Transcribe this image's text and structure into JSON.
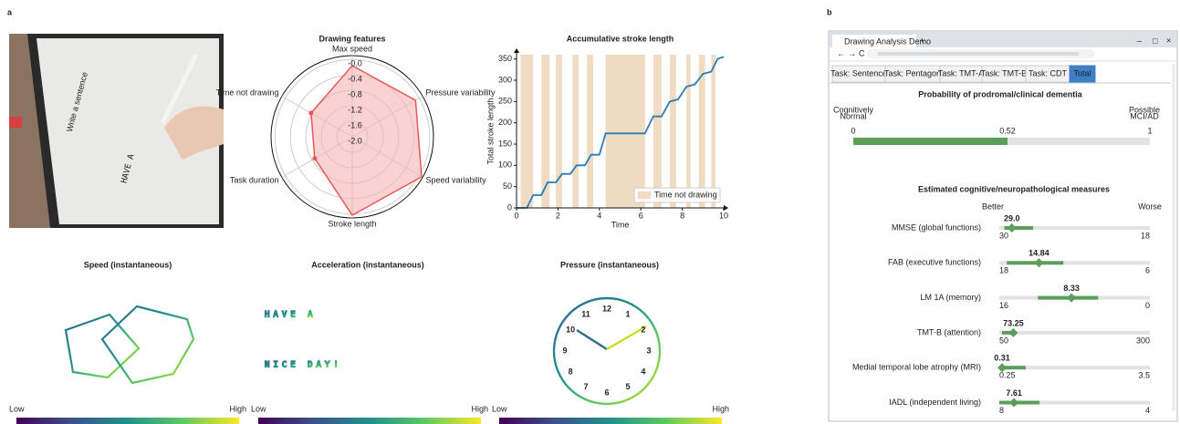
{
  "panel_a": {
    "label": "a",
    "photo": {
      "screen_text": "Write a sentence",
      "handwriting": "HAVE A"
    },
    "drawings": [
      {
        "title": "Speed (instantaneous)",
        "low": "Low",
        "high": "High"
      },
      {
        "title": "Acceleration (instantaneous)",
        "text_lines": [
          "HAVE A",
          "NICE DAY!"
        ],
        "low": "Low",
        "high": "High"
      },
      {
        "title": "Pressure (instantaneous)",
        "clock_numbers": [
          "12",
          "1",
          "2",
          "3",
          "4",
          "5",
          "6",
          "7",
          "8",
          "9",
          "10",
          "11"
        ],
        "low": "Low",
        "high": "High"
      }
    ]
  },
  "chart_data": [
    {
      "type": "radar",
      "title": "Drawing features",
      "categories": [
        "Max speed",
        "Pressure variability",
        "Speed variability",
        "Stroke length",
        "Task duration",
        "Time not drawing"
      ],
      "values": [
        -0.16,
        -0.11,
        0.07,
        0.03,
        -0.88,
        -0.77
      ],
      "color": "#e8585a",
      "fill": "#f6b4b2",
      "rlim": [
        -2.0,
        0.1
      ],
      "rticks": [
        {
          "value": 0,
          "label": "-0.0"
        },
        -0.4,
        -0.8,
        -1.2,
        -1.6,
        {
          "value": -2,
          "label": "-2.0"
        }
      ],
      "grid": true
    },
    {
      "type": "line",
      "title": "Accumulative stroke length",
      "xlabel": "Time",
      "ylabel": "Total stroke length",
      "x": [
        0,
        0.5,
        0.8,
        1.2,
        1.5,
        1.9,
        2.2,
        2.6,
        2.9,
        3.3,
        3.6,
        4.0,
        4.3,
        6.2,
        6.6,
        7.0,
        7.4,
        7.8,
        8.2,
        8.6,
        9.0,
        9.4,
        9.7,
        10
      ],
      "values": [
        0,
        0,
        30,
        30,
        60,
        60,
        80,
        80,
        100,
        100,
        125,
        125,
        175,
        175,
        215,
        215,
        250,
        255,
        285,
        290,
        315,
        320,
        350,
        355
      ],
      "color": "#2b7bb9",
      "shaded": {
        "name": "Time not drawing",
        "color": "#f0dcc2",
        "spans": [
          [
            0.2,
            0.8
          ],
          [
            1.2,
            1.6
          ],
          [
            1.9,
            2.2
          ],
          [
            2.7,
            3.0
          ],
          [
            3.4,
            3.7
          ],
          [
            4.3,
            6.2
          ],
          [
            6.6,
            7.0
          ],
          [
            7.4,
            7.7
          ],
          [
            8.2,
            8.4
          ],
          [
            8.8,
            9.1
          ],
          [
            9.4,
            9.6
          ]
        ]
      },
      "xlim": [
        0,
        10
      ],
      "xticks": [
        0,
        2,
        4,
        6,
        8,
        10
      ],
      "ylim": [
        0,
        360
      ],
      "yticks": [
        0,
        50,
        100,
        150,
        200,
        250,
        300,
        350
      ],
      "legend": "lower right"
    }
  ],
  "panel_b": {
    "label": "b",
    "browser_tab": "Drawing Analysis Demo",
    "tabs": [
      "Task: Sentence",
      "Task: Pentagon",
      "Task: TMT-A",
      "Task: TMT-B",
      "Task: CDT",
      "Total"
    ],
    "probability": {
      "title": "Probability of prodromal/clinical dementia",
      "left_label": [
        "Cognitively",
        "Normal"
      ],
      "right_label": [
        "Possible",
        "MCI/AD"
      ],
      "value": 0.52,
      "xlim": [
        0,
        1
      ],
      "xticks": [
        0,
        0.52,
        1
      ],
      "color": "#5a9e5a"
    },
    "measures": {
      "title": "Estimated cognitive/neuropathological measures",
      "better": "Better",
      "worse": "Worse",
      "color": "#5a9e5a",
      "items": [
        {
          "name": "MMSE (global functions)",
          "value": 29.0,
          "value_label": "29.0",
          "ci": [
            27.3,
            29.6
          ],
          "xlim": [
            30,
            18
          ]
        },
        {
          "name": "FAB (executive functions)",
          "value": 14.84,
          "ci": [
            12.9,
            17.4
          ],
          "xlim": [
            18,
            6
          ]
        },
        {
          "name": "LM 1A (memory)",
          "value": 8.33,
          "ci": [
            5.5,
            11.9
          ],
          "xlim": [
            16,
            0
          ]
        },
        {
          "name": "TMT-B (attention)",
          "value": 73.25,
          "ci": [
            54.5,
            75.8
          ],
          "xlim": [
            50,
            300
          ]
        },
        {
          "name": "Medial temporal lobe atrophy (MRI)",
          "value": 0.31,
          "ci": [
            0.25,
            0.82
          ],
          "xlim": [
            0.25,
            3.5
          ]
        },
        {
          "name": "IADL (independent living)",
          "value": 7.61,
          "ci": [
            6.93,
            8
          ],
          "xlim": [
            8,
            4
          ]
        }
      ]
    }
  }
}
